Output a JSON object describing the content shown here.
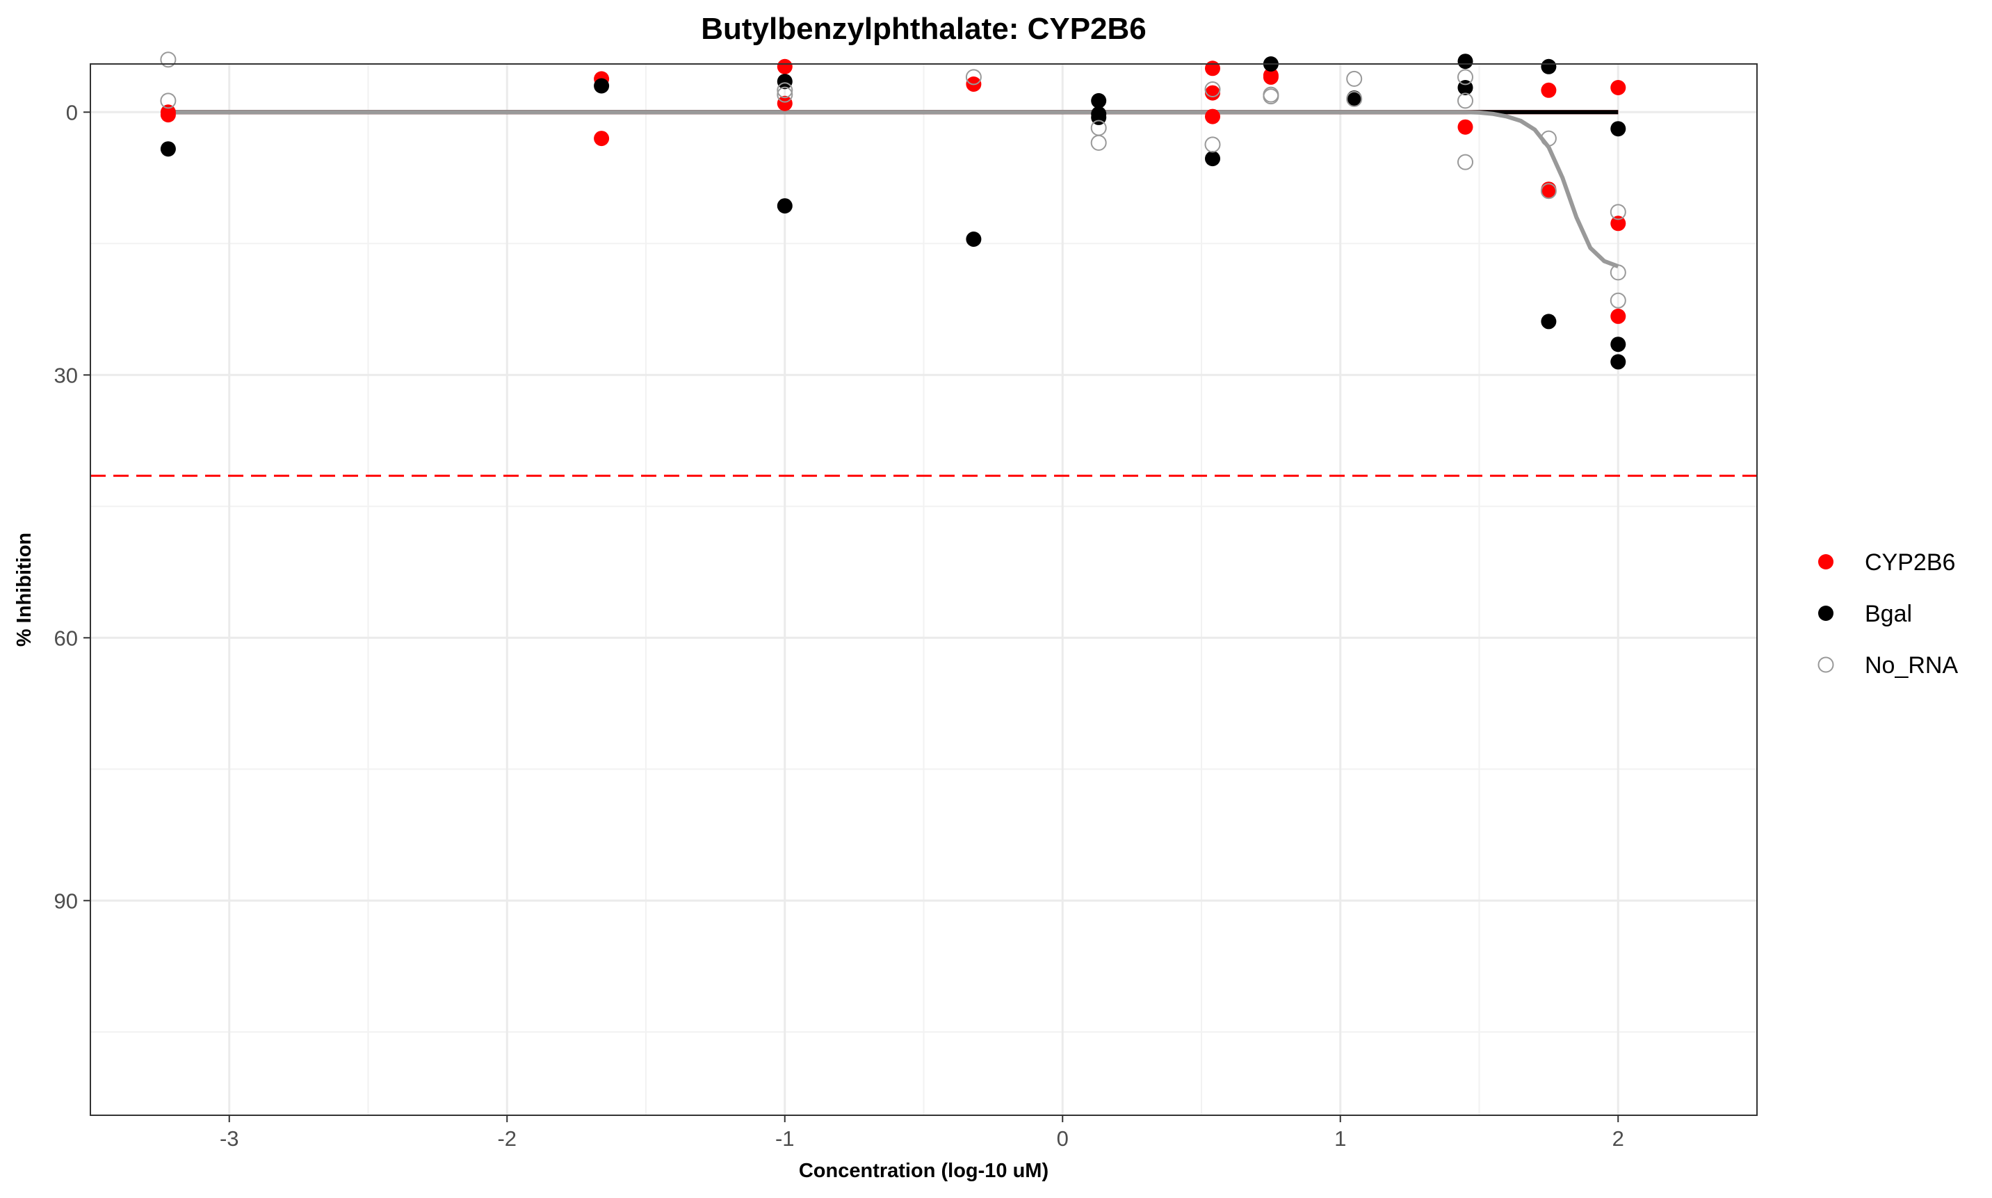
{
  "chart_data": {
    "type": "scatter",
    "title": "Butylbenzylphthalate: CYP2B6",
    "xlabel": "Concentration (log-10 uM)",
    "ylabel": "% Inhibition",
    "xlim": [
      -3.5,
      2.5
    ],
    "ylim": [
      -5.5,
      114.5
    ],
    "y_reversed": true,
    "x_ticks": [
      -3,
      -2,
      -1,
      0,
      1,
      2
    ],
    "x_tick_labels": [
      "-3",
      "-2",
      "-1",
      "0",
      "1",
      "2"
    ],
    "y_ticks": [
      0,
      30,
      60,
      90
    ],
    "y_tick_labels": [
      "0",
      "30",
      "60",
      "90"
    ],
    "grid": true,
    "legend_position": "right",
    "reference_line": {
      "y": 41.5,
      "style": "dashed",
      "color": "#ff0000"
    },
    "series": [
      {
        "name": "CYP2B6",
        "color": "#ff0000",
        "marker": "filled-circle",
        "points": [
          [
            -3.22,
            0
          ],
          [
            -3.22,
            0.3
          ],
          [
            -1.66,
            -3.8
          ],
          [
            -1.66,
            3
          ],
          [
            -1.0,
            -5.2
          ],
          [
            -1.0,
            -1
          ],
          [
            -0.32,
            -3.2
          ],
          [
            0.54,
            -5
          ],
          [
            0.54,
            -2.2
          ],
          [
            0.54,
            0.5
          ],
          [
            0.75,
            -4
          ],
          [
            0.75,
            -4.2
          ],
          [
            1.45,
            1.7
          ],
          [
            1.75,
            -2.5
          ],
          [
            1.75,
            8.8
          ],
          [
            1.75,
            9
          ],
          [
            2.0,
            -2.8
          ],
          [
            2.0,
            12.7
          ],
          [
            2.0,
            23.3
          ]
        ],
        "curve": [
          [
            -3.22,
            0
          ],
          [
            2.0,
            0
          ]
        ]
      },
      {
        "name": "Bgal",
        "color": "#000000",
        "marker": "filled-circle",
        "points": [
          [
            -3.22,
            4.2
          ],
          [
            -1.66,
            -3
          ],
          [
            -1.0,
            -3.5
          ],
          [
            -1.0,
            10.7
          ],
          [
            -0.32,
            14.5
          ],
          [
            0.13,
            -1.3
          ],
          [
            0.13,
            0.2
          ],
          [
            0.13,
            0.6
          ],
          [
            0.54,
            5.3
          ],
          [
            0.75,
            -5.5
          ],
          [
            1.05,
            -1.6
          ],
          [
            1.45,
            -5.8
          ],
          [
            1.45,
            -2.8
          ],
          [
            1.75,
            -5.2
          ],
          [
            1.75,
            23.9
          ],
          [
            2.0,
            1.9
          ],
          [
            2.0,
            26.5
          ],
          [
            2.0,
            28.5
          ]
        ],
        "curve": [
          [
            -3.22,
            0
          ],
          [
            1.45,
            0
          ],
          [
            2.0,
            0
          ]
        ]
      },
      {
        "name": "No_RNA",
        "color": "#999999",
        "marker": "open-circle",
        "points": [
          [
            -3.22,
            -6
          ],
          [
            -3.22,
            -1.3
          ],
          [
            -1.0,
            -2.5
          ],
          [
            -1.0,
            -2
          ],
          [
            -0.32,
            -4
          ],
          [
            0.13,
            1.8
          ],
          [
            0.13,
            3.5
          ],
          [
            0.54,
            -2.6
          ],
          [
            0.54,
            3.7
          ],
          [
            0.75,
            -2
          ],
          [
            0.75,
            -1.8
          ],
          [
            1.05,
            -3.8
          ],
          [
            1.05,
            -1.5
          ],
          [
            1.45,
            -4
          ],
          [
            1.45,
            -1.3
          ],
          [
            1.45,
            5.7
          ],
          [
            1.75,
            3
          ],
          [
            1.75,
            9
          ],
          [
            2.0,
            11.4
          ],
          [
            2.0,
            18.3
          ],
          [
            2.0,
            21.5
          ]
        ],
        "curve": [
          [
            -3.22,
            0
          ],
          [
            1.45,
            0
          ],
          [
            1.5,
            0.05
          ],
          [
            1.55,
            0.2
          ],
          [
            1.6,
            0.5
          ],
          [
            1.65,
            1
          ],
          [
            1.7,
            2
          ],
          [
            1.75,
            4
          ],
          [
            1.8,
            7.5
          ],
          [
            1.85,
            12
          ],
          [
            1.9,
            15.5
          ],
          [
            1.95,
            17
          ],
          [
            2.0,
            17.6
          ]
        ]
      }
    ]
  }
}
